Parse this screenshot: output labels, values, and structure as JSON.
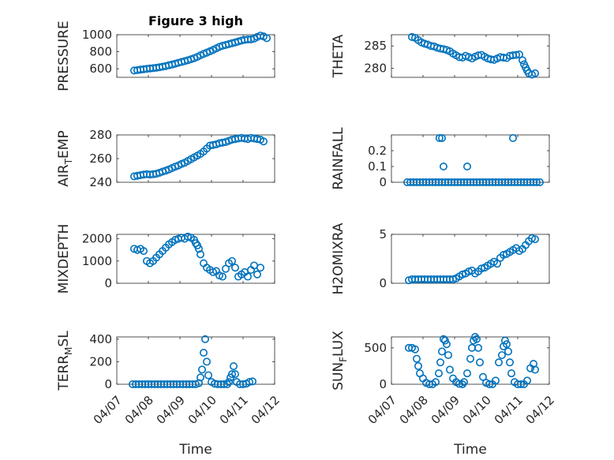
{
  "figure": {
    "title": "Figure 3 high",
    "marker_color": "#0072BD",
    "xlabel": "Time"
  },
  "chart_data": [
    {
      "type": "scatter",
      "title": "Figure 3 high",
      "ylabel": "PRESSURE",
      "xlim": [
        0,
        5
      ],
      "ylim": [
        500,
        1000
      ],
      "yticks": [
        600,
        800,
        1000
      ],
      "ytick_labels": [
        "600",
        "800",
        "1000"
      ],
      "xtick_labels": [],
      "show_xlabel": false,
      "x": [
        0.55,
        0.65,
        0.75,
        0.85,
        0.95,
        1.05,
        1.15,
        1.25,
        1.35,
        1.45,
        1.55,
        1.65,
        1.75,
        1.85,
        1.95,
        2.05,
        2.15,
        2.25,
        2.35,
        2.45,
        2.55,
        2.65,
        2.75,
        2.85,
        2.95,
        3.05,
        3.15,
        3.25,
        3.35,
        3.45,
        3.55,
        3.65,
        3.75,
        3.85,
        3.95,
        4.05,
        4.15,
        4.25,
        4.35,
        4.45,
        4.55,
        4.65,
        4.75
      ],
      "y": [
        580,
        584,
        590,
        595,
        600,
        604,
        608,
        612,
        618,
        625,
        632,
        642,
        650,
        660,
        670,
        680,
        690,
        700,
        712,
        725,
        740,
        758,
        775,
        790,
        805,
        822,
        840,
        858,
        870,
        880,
        890,
        900,
        910,
        920,
        932,
        940,
        945,
        945,
        955,
        975,
        990,
        980,
        960
      ]
    },
    {
      "type": "scatter",
      "title": "",
      "ylabel": "THETA",
      "xlim": [
        0,
        5
      ],
      "ylim": [
        278,
        287.5
      ],
      "yticks": [
        280,
        285
      ],
      "ytick_labels": [
        "280",
        "285"
      ],
      "xtick_labels": [],
      "show_xlabel": false,
      "x": [
        0.65,
        0.75,
        0.85,
        0.95,
        1.05,
        1.15,
        1.25,
        1.35,
        1.45,
        1.55,
        1.65,
        1.75,
        1.85,
        1.95,
        2.05,
        2.15,
        2.25,
        2.35,
        2.45,
        2.55,
        2.65,
        2.75,
        2.85,
        2.95,
        3.05,
        3.15,
        3.25,
        3.35,
        3.45,
        3.55,
        3.65,
        3.75,
        3.85,
        3.95,
        4.05,
        4.15,
        4.2,
        4.25,
        4.3,
        4.35,
        4.45,
        4.55
      ],
      "y": [
        287,
        286.8,
        286.3,
        285.8,
        285.5,
        285.3,
        285,
        284.9,
        284.6,
        284.4,
        284.3,
        284.1,
        283.8,
        283.3,
        282.9,
        282.5,
        282.4,
        282.8,
        282.5,
        282.2,
        282.6,
        282.9,
        283,
        282.6,
        282.2,
        282,
        281.9,
        282.2,
        282.5,
        282.4,
        282.3,
        282.8,
        282.9,
        283,
        283.1,
        281.8,
        280.9,
        280.2,
        279.5,
        278.9,
        278.6,
        278.9
      ]
    },
    {
      "type": "scatter",
      "title": "",
      "ylabel": "AIR_TEMP",
      "ylabel_main": "AIR",
      "ylabel_sub": "T",
      "ylabel_rest": "EMP",
      "xlim": [
        0,
        5
      ],
      "ylim": [
        240,
        280
      ],
      "yticks": [
        240,
        260,
        280
      ],
      "ytick_labels": [
        "240",
        "260",
        "280"
      ],
      "xtick_labels": [],
      "show_xlabel": false,
      "x": [
        0.55,
        0.65,
        0.75,
        0.85,
        0.95,
        1.05,
        1.15,
        1.25,
        1.35,
        1.45,
        1.55,
        1.65,
        1.75,
        1.85,
        1.95,
        2.05,
        2.15,
        2.25,
        2.35,
        2.45,
        2.55,
        2.65,
        2.75,
        2.85,
        2.95,
        3.05,
        3.15,
        3.25,
        3.35,
        3.45,
        3.55,
        3.65,
        3.75,
        3.85,
        3.95,
        4.05,
        4.15,
        4.25,
        4.35,
        4.45,
        4.55,
        4.65
      ],
      "y": [
        245,
        245.5,
        246,
        246.5,
        246.8,
        246.5,
        246.8,
        247.2,
        248,
        249,
        249.8,
        250.8,
        252,
        253.2,
        254.2,
        255.5,
        256.5,
        258,
        259.5,
        261,
        262.5,
        264,
        266,
        268.5,
        271,
        271.5,
        272,
        273,
        273.5,
        274,
        275,
        276,
        276.5,
        277,
        277.5,
        277,
        276.5,
        277.5,
        277,
        276.5,
        276,
        274.5
      ]
    },
    {
      "type": "scatter",
      "title": "",
      "ylabel": "RAINFALL",
      "xlim": [
        0,
        5
      ],
      "ylim": [
        0,
        0.3
      ],
      "yticks": [
        0,
        0.1,
        0.2
      ],
      "ytick_labels": [
        "0",
        "0.1",
        "0.2"
      ],
      "xtick_labels": [],
      "show_xlabel": false,
      "x": [
        0.5,
        0.6,
        0.7,
        0.8,
        0.9,
        1.0,
        1.1,
        1.2,
        1.3,
        1.4,
        1.5,
        1.6,
        1.7,
        1.8,
        1.9,
        2.0,
        2.1,
        2.2,
        2.3,
        2.4,
        2.5,
        2.6,
        2.7,
        2.8,
        2.9,
        3.0,
        3.1,
        3.2,
        3.3,
        3.4,
        3.5,
        3.6,
        3.7,
        3.8,
        3.9,
        4.0,
        4.1,
        4.2,
        4.3,
        4.4,
        4.5,
        4.6,
        4.7,
        1.52,
        1.6,
        1.65,
        2.4,
        3.85
      ],
      "y": [
        0,
        0,
        0,
        0,
        0,
        0,
        0,
        0,
        0,
        0,
        0,
        0,
        0,
        0,
        0,
        0,
        0,
        0,
        0,
        0,
        0,
        0,
        0,
        0,
        0,
        0,
        0,
        0,
        0,
        0,
        0,
        0,
        0,
        0,
        0,
        0,
        0,
        0,
        0,
        0,
        0,
        0,
        0,
        0.28,
        0.28,
        0.1,
        0.1,
        0.28
      ]
    },
    {
      "type": "scatter",
      "title": "",
      "ylabel": "MIXDEPTH",
      "xlim": [
        0,
        5
      ],
      "ylim": [
        0,
        2200
      ],
      "yticks": [
        0,
        1000,
        2000
      ],
      "ytick_labels": [
        "0",
        "1000",
        "2000"
      ],
      "xtick_labels": [],
      "show_xlabel": false,
      "x": [
        0.55,
        0.65,
        0.75,
        0.85,
        0.95,
        1.05,
        1.15,
        1.25,
        1.35,
        1.45,
        1.55,
        1.65,
        1.75,
        1.85,
        1.95,
        2.05,
        2.15,
        2.25,
        2.35,
        2.45,
        2.5,
        2.55,
        2.6,
        2.65,
        2.75,
        2.85,
        2.95,
        3.05,
        3.15,
        3.25,
        3.35,
        3.45,
        3.55,
        3.65,
        3.75,
        3.85,
        3.95,
        4.05,
        4.15,
        4.25,
        4.35,
        4.45,
        4.55
      ],
      "y": [
        1550,
        1500,
        1550,
        1450,
        1000,
        900,
        1000,
        1150,
        1300,
        1450,
        1600,
        1750,
        1850,
        1950,
        2000,
        2050,
        2000,
        2100,
        2050,
        1950,
        1800,
        1700,
        1550,
        1300,
        900,
        700,
        600,
        500,
        550,
        350,
        300,
        650,
        900,
        1000,
        700,
        300,
        400,
        500,
        300,
        600,
        800,
        400,
        700
      ]
    },
    {
      "type": "scatter",
      "title": "",
      "ylabel": "H2OMIXRA",
      "xlim": [
        0,
        5
      ],
      "ylim": [
        0,
        5
      ],
      "yticks": [
        0,
        5
      ],
      "ytick_labels": [
        "0",
        "5"
      ],
      "xtick_labels": [],
      "show_xlabel": false,
      "x": [
        0.55,
        0.65,
        0.75,
        0.85,
        0.95,
        1.05,
        1.15,
        1.25,
        1.35,
        1.45,
        1.55,
        1.65,
        1.75,
        1.85,
        1.95,
        2.05,
        2.15,
        2.25,
        2.35,
        2.45,
        2.55,
        2.65,
        2.75,
        2.85,
        2.95,
        3.05,
        3.15,
        3.25,
        3.35,
        3.45,
        3.55,
        3.65,
        3.75,
        3.85,
        3.95,
        4.05,
        4.15,
        4.25,
        4.35,
        4.45,
        4.55
      ],
      "y": [
        0.3,
        0.4,
        0.4,
        0.4,
        0.4,
        0.4,
        0.4,
        0.4,
        0.4,
        0.4,
        0.4,
        0.4,
        0.4,
        0.4,
        0.4,
        0.5,
        0.7,
        0.9,
        1.0,
        1.2,
        1.3,
        1.0,
        1.2,
        1.5,
        1.6,
        1.8,
        2.0,
        2.2,
        2.0,
        2.6,
        2.9,
        3.0,
        3.2,
        3.4,
        3.6,
        3.3,
        3.5,
        3.9,
        4.3,
        4.6,
        4.5
      ]
    },
    {
      "type": "scatter",
      "title": "",
      "ylabel": "TERR_MSL",
      "ylabel_main": "TERR",
      "ylabel_sub": "M",
      "ylabel_rest": "SL",
      "xlim": [
        0,
        5
      ],
      "ylim": [
        0,
        420
      ],
      "yticks": [
        0,
        200,
        400
      ],
      "ytick_labels": [
        "0",
        "200",
        "400"
      ],
      "xtick_labels": [
        "04/07",
        "04/08",
        "04/09",
        "04/10",
        "04/11",
        "04/12"
      ],
      "show_xlabel": true,
      "x": [
        0.5,
        0.6,
        0.7,
        0.8,
        0.9,
        1.0,
        1.1,
        1.2,
        1.3,
        1.4,
        1.5,
        1.6,
        1.7,
        1.8,
        1.9,
        2.0,
        2.1,
        2.2,
        2.3,
        2.4,
        2.5,
        2.6,
        2.65,
        2.7,
        2.75,
        2.8,
        2.85,
        2.9,
        3.0,
        3.1,
        3.2,
        3.3,
        3.4,
        3.5,
        3.55,
        3.6,
        3.65,
        3.7,
        3.75,
        3.8,
        3.9,
        4.0,
        4.1,
        4.2,
        4.3
      ],
      "y": [
        0,
        0,
        0,
        0,
        0,
        0,
        0,
        0,
        0,
        0,
        0,
        0,
        0,
        0,
        0,
        0,
        0,
        0,
        0,
        0,
        0,
        10,
        60,
        130,
        280,
        400,
        200,
        80,
        20,
        5,
        0,
        0,
        0,
        0,
        20,
        60,
        90,
        160,
        90,
        20,
        0,
        0,
        5,
        20,
        25
      ]
    },
    {
      "type": "scatter",
      "title": "",
      "ylabel": "SUN_FLUX",
      "ylabel_main": "SUN",
      "ylabel_sub": "F",
      "ylabel_rest": "LUX",
      "xlim": [
        0,
        5
      ],
      "ylim": [
        0,
        650
      ],
      "yticks": [
        0,
        500
      ],
      "ytick_labels": [
        "0",
        "500"
      ],
      "xtick_labels": [
        "04/07",
        "04/08",
        "04/09",
        "04/10",
        "04/11",
        "04/12"
      ],
      "show_xlabel": true,
      "x": [
        0.55,
        0.65,
        0.75,
        0.8,
        0.85,
        0.9,
        1.0,
        1.1,
        1.2,
        1.3,
        1.4,
        1.5,
        1.55,
        1.6,
        1.65,
        1.7,
        1.75,
        1.8,
        1.85,
        1.95,
        2.05,
        2.15,
        2.25,
        2.3,
        2.4,
        2.5,
        2.55,
        2.6,
        2.65,
        2.7,
        2.75,
        2.8,
        2.9,
        3.0,
        3.1,
        3.2,
        3.3,
        3.4,
        3.5,
        3.55,
        3.6,
        3.65,
        3.7,
        3.75,
        3.8,
        3.9,
        4.0,
        4.1,
        4.2,
        4.3,
        4.4,
        4.5,
        4.55
      ],
      "y": [
        500,
        500,
        480,
        350,
        250,
        150,
        80,
        20,
        0,
        0,
        30,
        150,
        300,
        450,
        620,
        600,
        550,
        400,
        200,
        80,
        30,
        5,
        0,
        30,
        150,
        350,
        500,
        600,
        650,
        620,
        500,
        300,
        100,
        20,
        0,
        0,
        50,
        300,
        400,
        520,
        600,
        550,
        450,
        300,
        150,
        30,
        0,
        0,
        0,
        50,
        220,
        280,
        200
      ]
    }
  ]
}
